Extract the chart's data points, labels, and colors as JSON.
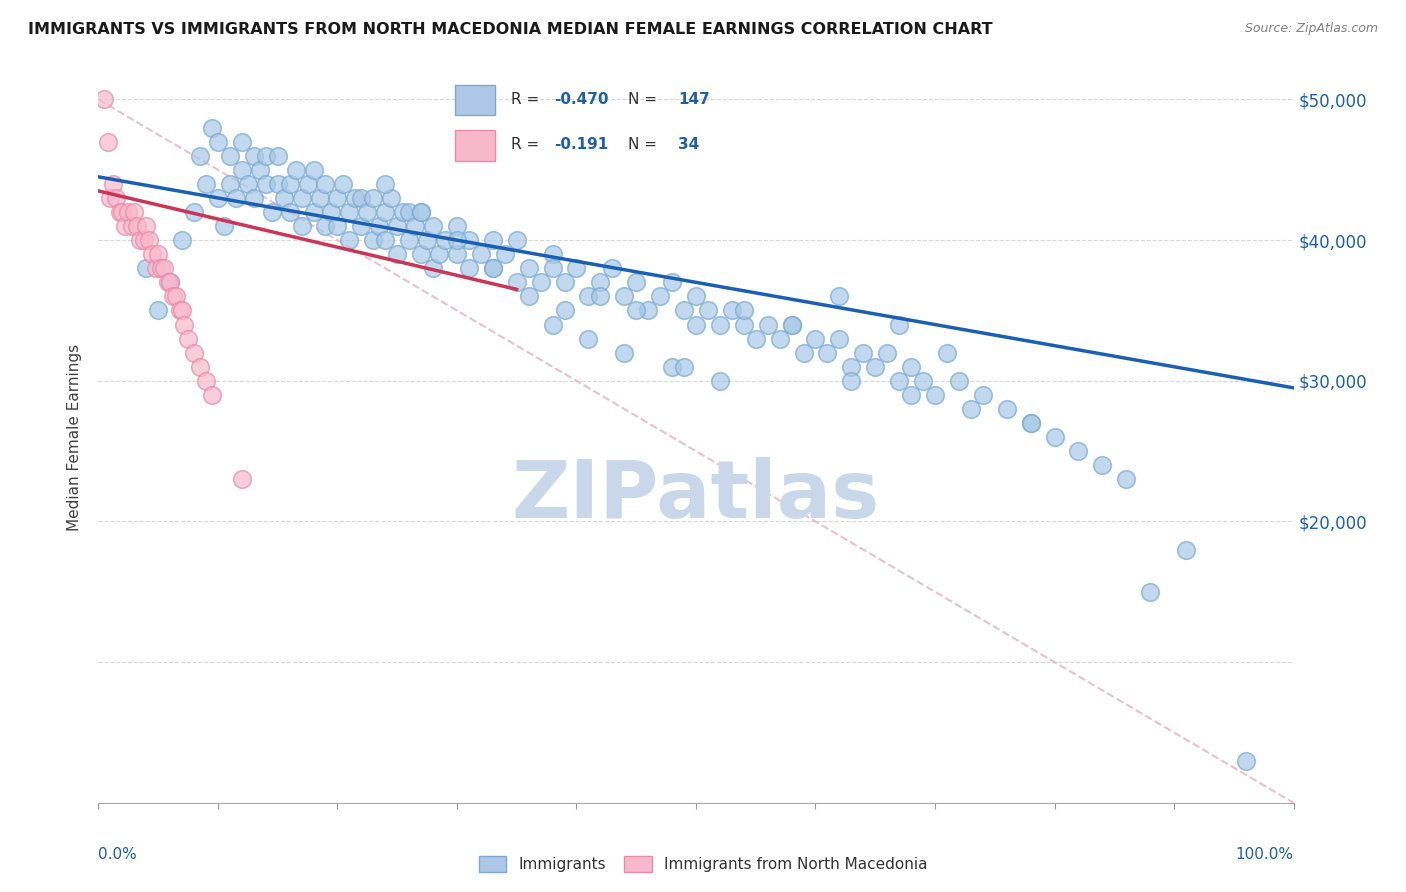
{
  "title": "IMMIGRANTS VS IMMIGRANTS FROM NORTH MACEDONIA MEDIAN FEMALE EARNINGS CORRELATION CHART",
  "source": "Source: ZipAtlas.com",
  "ylabel": "Median Female Earnings",
  "scatter_color_blue": "#a8c8e8",
  "scatter_edge_blue": "#7aaad0",
  "scatter_color_pink": "#f8b8cc",
  "scatter_edge_pink": "#e88aaa",
  "line_color_blue": "#1a5fb4",
  "line_color_pink": "#cc3355",
  "diagonal_color": "#e8b0c0",
  "watermark_text": "ZIPatlas",
  "watermark_color": "#c8d8ea",
  "background_color": "#ffffff",
  "grid_color": "#d8d8d8",
  "title_color": "#1a1a1a",
  "axis_label_color": "#404040",
  "tick_label_color_right": "#1a5fb4",
  "x_min": 0.0,
  "x_max": 1.0,
  "y_min": 0,
  "y_max": 52000,
  "blue_line_x": [
    0.0,
    1.0
  ],
  "blue_line_y": [
    44500,
    29500
  ],
  "pink_line_x": [
    0.0,
    0.35
  ],
  "pink_line_y": [
    43500,
    36500
  ],
  "diagonal_line_x": [
    0.0,
    1.0
  ],
  "diagonal_line_y": [
    50000,
    0
  ],
  "blue_scatter_x": [
    0.04,
    0.05,
    0.06,
    0.07,
    0.08,
    0.085,
    0.09,
    0.095,
    0.1,
    0.1,
    0.105,
    0.11,
    0.11,
    0.115,
    0.12,
    0.12,
    0.125,
    0.13,
    0.13,
    0.135,
    0.14,
    0.14,
    0.145,
    0.15,
    0.15,
    0.155,
    0.16,
    0.16,
    0.165,
    0.17,
    0.17,
    0.175,
    0.18,
    0.18,
    0.185,
    0.19,
    0.19,
    0.195,
    0.2,
    0.2,
    0.205,
    0.21,
    0.21,
    0.215,
    0.22,
    0.22,
    0.225,
    0.23,
    0.23,
    0.235,
    0.24,
    0.24,
    0.245,
    0.25,
    0.25,
    0.255,
    0.26,
    0.26,
    0.265,
    0.27,
    0.27,
    0.275,
    0.28,
    0.28,
    0.285,
    0.29,
    0.3,
    0.3,
    0.31,
    0.31,
    0.32,
    0.33,
    0.33,
    0.34,
    0.35,
    0.35,
    0.36,
    0.37,
    0.38,
    0.38,
    0.39,
    0.4,
    0.41,
    0.42,
    0.43,
    0.44,
    0.45,
    0.46,
    0.47,
    0.48,
    0.49,
    0.5,
    0.51,
    0.52,
    0.53,
    0.54,
    0.55,
    0.56,
    0.57,
    0.58,
    0.59,
    0.6,
    0.61,
    0.62,
    0.63,
    0.64,
    0.65,
    0.66,
    0.67,
    0.68,
    0.69,
    0.7,
    0.72,
    0.74,
    0.76,
    0.78,
    0.8,
    0.82,
    0.84,
    0.86,
    0.62,
    0.58,
    0.54,
    0.5,
    0.45,
    0.42,
    0.39,
    0.36,
    0.33,
    0.3,
    0.27,
    0.24,
    0.48,
    0.44,
    0.41,
    0.38,
    0.52,
    0.49,
    0.63,
    0.68,
    0.73,
    0.78,
    0.67,
    0.71,
    0.96,
    0.88,
    0.91
  ],
  "blue_scatter_y": [
    38000,
    35000,
    37000,
    40000,
    42000,
    46000,
    44000,
    48000,
    43000,
    47000,
    41000,
    44000,
    46000,
    43000,
    45000,
    47000,
    44000,
    46000,
    43000,
    45000,
    44000,
    46000,
    42000,
    44000,
    46000,
    43000,
    44000,
    42000,
    45000,
    43000,
    41000,
    44000,
    42000,
    45000,
    43000,
    41000,
    44000,
    42000,
    43000,
    41000,
    44000,
    42000,
    40000,
    43000,
    41000,
    43000,
    42000,
    40000,
    43000,
    41000,
    42000,
    40000,
    43000,
    41000,
    39000,
    42000,
    40000,
    42000,
    41000,
    39000,
    42000,
    40000,
    38000,
    41000,
    39000,
    40000,
    39000,
    41000,
    40000,
    38000,
    39000,
    40000,
    38000,
    39000,
    37000,
    40000,
    38000,
    37000,
    39000,
    38000,
    37000,
    38000,
    36000,
    37000,
    38000,
    36000,
    37000,
    35000,
    36000,
    37000,
    35000,
    36000,
    35000,
    34000,
    35000,
    34000,
    33000,
    34000,
    33000,
    34000,
    32000,
    33000,
    32000,
    33000,
    31000,
    32000,
    31000,
    32000,
    30000,
    31000,
    30000,
    29000,
    30000,
    29000,
    28000,
    27000,
    26000,
    25000,
    24000,
    23000,
    36000,
    34000,
    35000,
    34000,
    35000,
    36000,
    35000,
    36000,
    38000,
    40000,
    42000,
    44000,
    31000,
    32000,
    33000,
    34000,
    30000,
    31000,
    30000,
    29000,
    28000,
    27000,
    34000,
    32000,
    3000,
    15000,
    18000
  ],
  "pink_scatter_x": [
    0.005,
    0.008,
    0.01,
    0.012,
    0.015,
    0.018,
    0.02,
    0.022,
    0.025,
    0.028,
    0.03,
    0.032,
    0.035,
    0.038,
    0.04,
    0.042,
    0.045,
    0.048,
    0.05,
    0.052,
    0.055,
    0.058,
    0.06,
    0.062,
    0.065,
    0.068,
    0.07,
    0.072,
    0.075,
    0.08,
    0.085,
    0.09,
    0.095,
    0.12
  ],
  "pink_scatter_y": [
    50000,
    47000,
    43000,
    44000,
    43000,
    42000,
    42000,
    41000,
    42000,
    41000,
    42000,
    41000,
    40000,
    40000,
    41000,
    40000,
    39000,
    38000,
    39000,
    38000,
    38000,
    37000,
    37000,
    36000,
    36000,
    35000,
    35000,
    34000,
    33000,
    32000,
    31000,
    30000,
    29000,
    23000
  ]
}
